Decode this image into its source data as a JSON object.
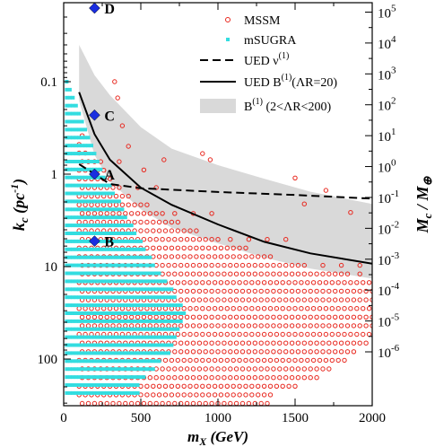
{
  "chart_data": {
    "type": "scatter",
    "xlabel": "m",
    "xlabel_sub": "X",
    "xlabel_unit": "(GeV)",
    "ylabel_left": "k",
    "ylabel_left_sub": "c",
    "ylabel_left_unit": "(pc",
    "ylabel_left_exp": "-1",
    "ylabel_left_close": ")",
    "ylabel_right": "M",
    "ylabel_right_sub": "c",
    "ylabel_right_sep": "/ M",
    "ylabel_right_sub2": "⊕",
    "xlim": [
      0,
      2000
    ],
    "ylim_left": [
      0.01,
      500
    ],
    "y_scale": "log-inverted",
    "x_ticks": [
      0,
      500,
      1000,
      1500,
      2000
    ],
    "x_tick_labels": [
      "0",
      "500",
      "1000",
      "1500",
      "2000"
    ],
    "y_left_ticks": [
      0.1,
      1,
      10,
      100
    ],
    "y_left_tick_labels": [
      "0.1",
      "1",
      "10",
      "100"
    ],
    "y_right_ticks": [
      5,
      4,
      3,
      2,
      1,
      0,
      -1,
      -2,
      -3,
      -4,
      -5,
      -6
    ],
    "y_right_tick_base": "10",
    "y_right_tick_exps": [
      "5",
      "4",
      "3",
      "2",
      "1",
      "0",
      "-1",
      "-2",
      "-3",
      "-4",
      "-5",
      "-6"
    ],
    "legend": [
      {
        "label": "MSSM",
        "marker": "open-circle",
        "color": "#e8271e"
      },
      {
        "label": "mSUGRA",
        "marker": "filled-square",
        "color": "#33dde0"
      },
      {
        "label": "UED ν",
        "sup": "(1)",
        "marker": "dashed-line",
        "color": "#000000"
      },
      {
        "label": "UED B",
        "sup": "(1)",
        "suffix": "(ΛR=20)",
        "marker": "solid-line",
        "color": "#000000"
      },
      {
        "label": "B",
        "sup": "(1)",
        "suffix": " (2<ΛR<200)",
        "marker": "gray-band",
        "color": "#d9d9d9"
      }
    ],
    "legend_position": "top-right",
    "labeled_points": [
      {
        "label": "D",
        "x": 200,
        "k": 0.016
      },
      {
        "label": "C",
        "x": 200,
        "k": 0.23
      },
      {
        "label": "A",
        "x": 200,
        "k": 1.0
      },
      {
        "label": "B",
        "x": 200,
        "k": 5.3
      }
    ],
    "ued_nu_curve": {
      "x": [
        100,
        300,
        500,
        1000,
        1500,
        2000
      ],
      "k": [
        0.78,
        1.28,
        1.42,
        1.56,
        1.68,
        1.84
      ]
    },
    "ued_b_curve": {
      "x": [
        100,
        200,
        300,
        500,
        700,
        1000,
        1300,
        1600,
        2000
      ],
      "k": [
        0.13,
        0.37,
        0.7,
        1.4,
        2.15,
        3.5,
        5.4,
        7.2,
        9.3
      ]
    },
    "b_band_upper": {
      "x": [
        100,
        200,
        300,
        500,
        700,
        1000,
        1300,
        1600,
        2000
      ],
      "k": [
        0.04,
        0.085,
        0.14,
        0.31,
        0.53,
        0.8,
        1.12,
        1.55,
        2.1
      ]
    },
    "b_band_lower": {
      "x": [
        100,
        200,
        300,
        500,
        700,
        1000,
        1300,
        1600,
        2000
      ],
      "k": [
        0.16,
        0.62,
        1.2,
        2.4,
        3.8,
        5.6,
        8.0,
        10.5,
        13.5
      ]
    },
    "msugra_region": {
      "x_step": 20,
      "k_step_ratio": 1.22,
      "boundary": {
        "x": [
          20,
          80,
          150,
          250,
          350,
          500,
          650,
          800
        ],
        "k_min": [
          0.1,
          0.18,
          0.3,
          0.55,
          0.9,
          1.6,
          2.5,
          4.0
        ]
      },
      "x_max": [
        {
          "k": 0.1,
          "x": 40
        },
        {
          "k": 1,
          "x": 260
        },
        {
          "k": 10,
          "x": 600
        },
        {
          "k": 30,
          "x": 800
        },
        {
          "k": 80,
          "x": 700
        },
        {
          "k": 200,
          "x": 480
        }
      ]
    },
    "mssm_region": {
      "x_step": 40,
      "k_step_ratio": 1.24,
      "k_min_at_x": {
        "x": [
          100,
          300,
          500,
          700,
          1000,
          1300,
          1600,
          2000
        ],
        "k": [
          0.25,
          0.6,
          1.1,
          1.7,
          2.7,
          4.2,
          5.7,
          7.5
        ]
      },
      "x_max": [
        {
          "k": 3,
          "x": 2000
        },
        {
          "k": 60,
          "x": 2000
        },
        {
          "k": 150,
          "x": 1700
        },
        {
          "k": 250,
          "x": 1350
        }
      ]
    },
    "colors": {
      "mssm": "#e8271e",
      "msugra": "#33dde0",
      "band": "#d9d9d9",
      "point": "#1a2ee0"
    }
  }
}
